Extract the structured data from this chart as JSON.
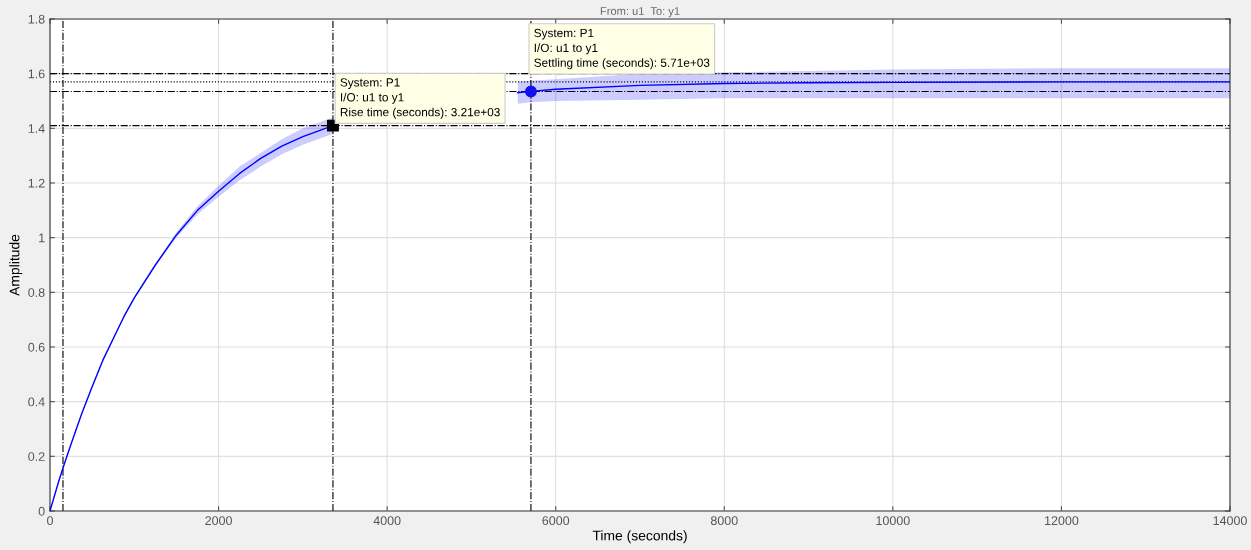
{
  "chart_data": {
    "type": "line",
    "title": "From: u1  To: y1",
    "xlabel": "Time (seconds)",
    "ylabel": "Amplitude",
    "x": [
      0,
      100,
      154,
      250,
      375,
      500,
      625,
      750,
      875,
      1000,
      1250,
      1500,
      1750,
      2000,
      2250,
      2500,
      2750,
      3000,
      3357,
      4000,
      4500,
      5000,
      5550,
      5706,
      6000,
      7000,
      8000,
      9000,
      10000,
      12000,
      14000
    ],
    "series": [
      {
        "color": "#0000ff",
        "values": [
          0,
          0.105,
          0.157,
          0.245,
          0.355,
          0.455,
          0.55,
          0.63,
          0.71,
          0.78,
          0.9,
          1.01,
          1.1,
          1.17,
          1.235,
          1.29,
          1.335,
          1.37,
          1.41,
          null,
          null,
          null,
          1.53,
          1.535,
          1.543,
          1.557,
          1.564,
          1.567,
          1.568,
          1.57,
          1.57
        ],
        "lower": [
          0,
          0.104,
          0.155,
          0.24,
          0.35,
          0.45,
          0.545,
          0.625,
          0.705,
          0.775,
          0.895,
          1.0,
          1.085,
          1.15,
          1.21,
          1.26,
          1.305,
          1.34,
          1.38,
          null,
          null,
          null,
          1.49,
          1.495,
          1.5,
          1.505,
          1.51,
          1.51,
          1.51,
          1.51,
          1.51
        ],
        "upper": [
          0,
          0.106,
          0.16,
          0.25,
          0.36,
          0.46,
          0.555,
          0.635,
          0.715,
          0.785,
          0.905,
          1.02,
          1.115,
          1.19,
          1.26,
          1.31,
          1.36,
          1.4,
          1.44,
          null,
          null,
          null,
          1.57,
          1.575,
          1.58,
          1.6,
          1.605,
          1.61,
          1.615,
          1.62,
          1.62
        ]
      },
      {
        "type": "scatter",
        "color": "#000000",
        "marker": "square",
        "x": [
          3357
        ],
        "values": [
          1.41
        ]
      },
      {
        "type": "scatter",
        "color": "#1010f0",
        "marker": "circle",
        "x": [
          5706
        ],
        "values": [
          1.535
        ]
      }
    ],
    "ref_lines": [
      {
        "axis": "y",
        "value": 1.6,
        "color": "#000000",
        "line_style": "dashdot"
      },
      {
        "axis": "y",
        "value": 1.57,
        "color": "#000000",
        "line_style": "dotted"
      },
      {
        "axis": "y",
        "value": 1.535,
        "color": "#000000",
        "line_style": "dashdot"
      },
      {
        "axis": "y",
        "value": 1.41,
        "color": "#000000",
        "line_style": "dashdot"
      },
      {
        "axis": "x",
        "value": 154,
        "color": "#000000",
        "line_style": "dashdot"
      },
      {
        "axis": "x",
        "value": 3357,
        "color": "#000000",
        "line_style": "dashdot"
      },
      {
        "axis": "x",
        "value": 5706,
        "color": "#000000",
        "line_style": "dashdot"
      }
    ],
    "annotations": [
      {
        "text": "System: P1\nI/O: u1 to y1\nRise time (seconds): 3.21e+03",
        "x": 3357,
        "y": 1.41
      },
      {
        "text": "System: P1\nI/O: u1 to y1\nSettling time (seconds): 5.71e+03",
        "x": 5706,
        "y": 1.535
      }
    ],
    "xlim": [
      0,
      14000
    ],
    "xticks": [
      0,
      2000,
      4000,
      6000,
      8000,
      10000,
      12000,
      14000
    ],
    "ylim": [
      0,
      1.8
    ],
    "yticks": [
      0,
      0.2,
      0.4,
      0.6,
      0.8,
      1,
      1.2,
      1.4,
      1.6,
      1.8
    ],
    "grid": true
  }
}
